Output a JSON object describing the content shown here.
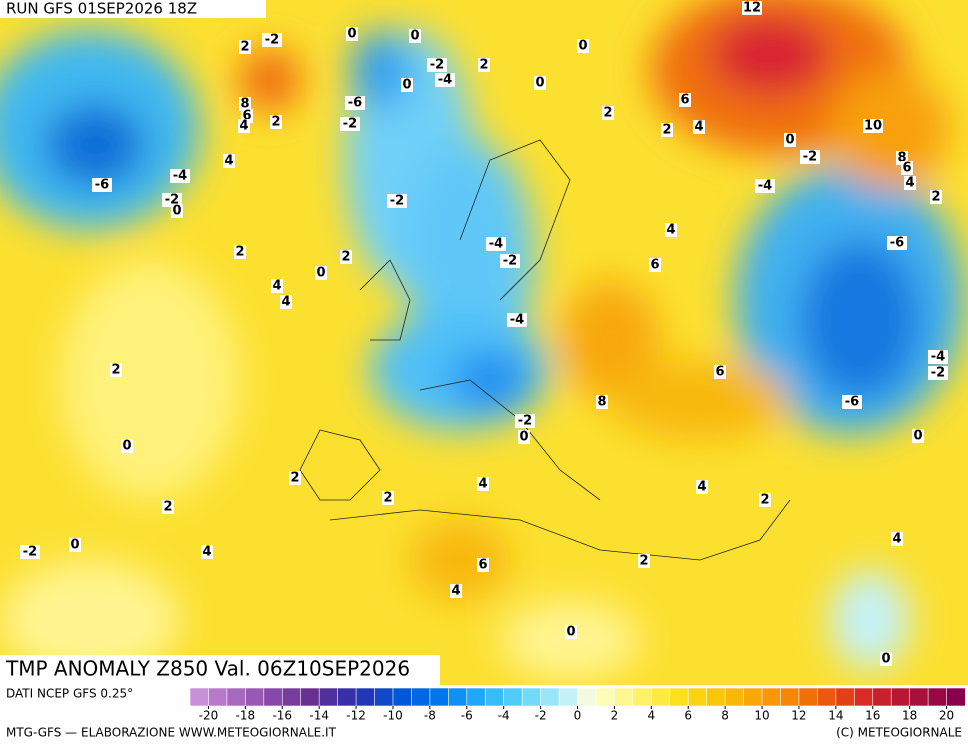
{
  "header": {
    "run": "RUN GFS 01SEP2026 18Z"
  },
  "map": {
    "title": "TMP ANOMALY Z850 Val. 06Z10SEP2026",
    "contour_labels": [
      12,
      2,
      -2,
      0,
      0,
      0,
      -2,
      2,
      -4,
      0,
      0,
      -6,
      8,
      6,
      4,
      2,
      -2,
      2,
      6,
      2,
      4,
      10,
      0,
      -2,
      8,
      6,
      4,
      -6,
      -4,
      -2,
      0,
      4,
      -4,
      2,
      -2,
      4,
      -6,
      -4,
      -2,
      2,
      2,
      0,
      6,
      4,
      4,
      -4,
      6,
      -4,
      -2,
      2,
      -6,
      8,
      -2,
      0,
      0,
      0,
      2,
      4,
      2,
      4,
      2,
      2,
      -2,
      0,
      4,
      6,
      2,
      4,
      4,
      0,
      0
    ]
  },
  "colorbar": {
    "colors": [
      "#c890d8",
      "#b878cc",
      "#a868c0",
      "#9858b4",
      "#8848a8",
      "#783c9c",
      "#683090",
      "#50309c",
      "#3830a8",
      "#2038b8",
      "#1048c8",
      "#0058d8",
      "#0068e4",
      "#0078ec",
      "#1090f4",
      "#20a8f8",
      "#38bcf8",
      "#50ccf8",
      "#70daf8",
      "#98e6f8",
      "#c4f2f8",
      "#f4fae0",
      "#fffcb8",
      "#fff890",
      "#fff268",
      "#feea40",
      "#fce020",
      "#fad410",
      "#f8c808",
      "#f8b808",
      "#f8a808",
      "#f89808",
      "#f48608",
      "#f07008",
      "#ec5810",
      "#e44018",
      "#d82c24",
      "#c8202c",
      "#b81834",
      "#a8103c",
      "#980844",
      "#88004c"
    ],
    "range": [
      -21,
      21
    ],
    "ticks": [
      -20,
      -18,
      -16,
      -14,
      -12,
      -10,
      -8,
      -6,
      -4,
      -2,
      0,
      2,
      4,
      6,
      8,
      10,
      12,
      14,
      16,
      18,
      20
    ]
  },
  "footer": {
    "source": "DATI NCEP GFS 0.25°",
    "credit": "MTG-GFS — ELABORAZIONE WWW.METEOGIORNALE.IT",
    "copyright": "(C) METEOGIORNALE"
  }
}
